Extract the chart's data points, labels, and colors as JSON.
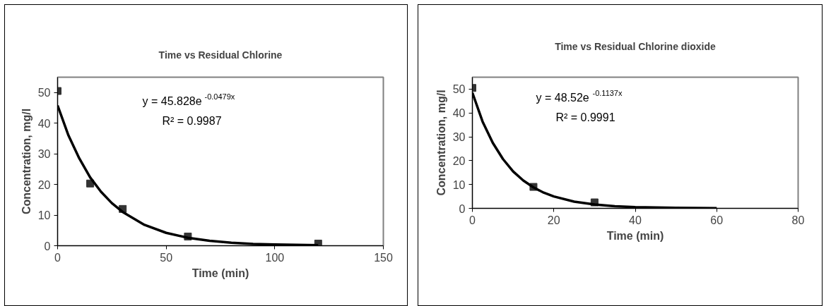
{
  "chart_data": [
    {
      "type": "scatter",
      "title": "Time vs Residual Chlorine",
      "xlabel": "Time (min)",
      "ylabel": "Concentration, mg/l",
      "xlim": [
        0,
        150
      ],
      "ylim": [
        0,
        55
      ],
      "xticks": [
        0,
        50,
        100,
        150
      ],
      "yticks": [
        0,
        10,
        20,
        30,
        40,
        50
      ],
      "annotations": [
        "y = 45.828e$^{-0.0479x}$",
        "R² = 0.9987"
      ],
      "series": [
        {
          "marker": "square",
          "color": "#333333",
          "x": [
            0,
            15,
            30,
            60,
            120
          ],
          "values": [
            50.5,
            20.3,
            12,
            3,
            0.7
          ]
        },
        {
          "type": "line",
          "color": "#000000",
          "x": [
            0,
            5,
            10,
            15,
            20,
            25,
            30,
            40,
            50,
            60,
            70,
            80,
            90,
            100,
            110,
            120
          ],
          "values": [
            45.8,
            36,
            28.5,
            22.3,
            17.6,
            13.9,
            11,
            6.8,
            4.2,
            2.6,
            1.6,
            1,
            0.6,
            0.4,
            0.3,
            0.2
          ]
        }
      ]
    },
    {
      "type": "scatter",
      "title": "Time vs Residual Chlorine dioxide",
      "xlabel": "Time (min)",
      "ylabel": "Concentration, mg/l",
      "xlim": [
        0,
        80
      ],
      "ylim": [
        0,
        55
      ],
      "xticks": [
        0,
        20,
        40,
        60,
        80
      ],
      "yticks": [
        0,
        10,
        20,
        30,
        40,
        50
      ],
      "annotations": [
        "y = 48.52e$^{-0.1137x}$",
        "R² = 0.9991"
      ],
      "series": [
        {
          "marker": "square",
          "color": "#333333",
          "x": [
            0,
            15,
            30
          ],
          "values": [
            50.5,
            9,
            2.5
          ]
        },
        {
          "type": "line",
          "color": "#000000",
          "x": [
            0,
            2.5,
            5,
            7.5,
            10,
            12.5,
            15,
            17.5,
            20,
            25,
            30,
            35,
            40,
            50,
            60
          ],
          "values": [
            48.5,
            36.4,
            27.5,
            20.7,
            15.5,
            11.7,
            8.8,
            6.6,
            5,
            2.8,
            1.6,
            0.9,
            0.5,
            0.2,
            0.1
          ]
        }
      ]
    }
  ]
}
